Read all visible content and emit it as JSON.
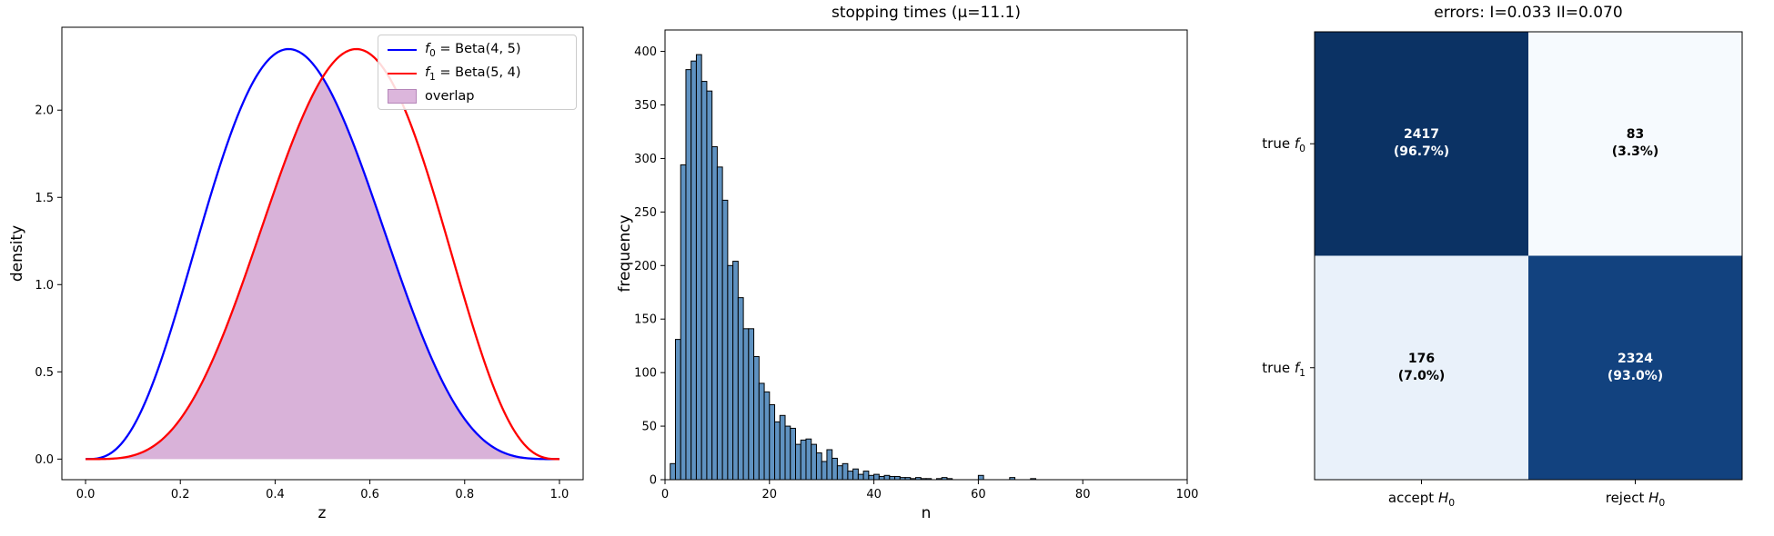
{
  "figure": {
    "background": "#ffffff"
  },
  "chart_data": [
    {
      "type": "line",
      "title": "",
      "xlabel": "z",
      "ylabel": "density",
      "xlim": [
        -0.05,
        1.05
      ],
      "ylim": [
        -0.118,
        2.475
      ],
      "xtick_labels": [
        "0.0",
        "0.2",
        "0.4",
        "0.6",
        "0.8",
        "1.0"
      ],
      "xtick_vals": [
        0,
        0.2,
        0.4,
        0.6,
        0.8,
        1.0
      ],
      "ytick_labels": [
        "0.0",
        "0.5",
        "1.0",
        "1.5",
        "2.0"
      ],
      "ytick_vals": [
        0,
        0.5,
        1.0,
        1.5,
        2.0
      ],
      "series": [
        {
          "label_it": "f",
          "label_sub": "0",
          "label_rest": " = Beta(4, 5)",
          "color": "#0000ff",
          "beta_a": 4,
          "beta_b": 5,
          "coef": 280
        },
        {
          "label_it": "f",
          "label_sub": "1",
          "label_rest": " = Beta(5, 4)",
          "color": "#ff0000",
          "beta_a": 5,
          "beta_b": 4,
          "coef": 280
        }
      ],
      "overlap": {
        "label": "overlap",
        "fill": "rgba(128,0,128,0.30)",
        "legend_fill": "#dcb6dc",
        "legend_edge": "#b586b9"
      }
    },
    {
      "type": "histogram",
      "title": "stopping times (μ=11.1)",
      "xlabel": "n",
      "ylabel": "frequency",
      "xlim": [
        0,
        100
      ],
      "ylim": [
        0,
        420
      ],
      "xtick_labels": [
        "0",
        "20",
        "40",
        "60",
        "80",
        "100"
      ],
      "xtick_vals": [
        0,
        20,
        40,
        60,
        80,
        100
      ],
      "ytick_labels": [
        "0",
        "50",
        "100",
        "150",
        "200",
        "250",
        "300",
        "350",
        "400"
      ],
      "ytick_vals": [
        0,
        50,
        100,
        150,
        200,
        250,
        300,
        350,
        400
      ],
      "bar_fill": "#5f92c1",
      "bar_edge": "#000000",
      "bin_start": 1,
      "frequencies": [
        15,
        131,
        294,
        383,
        391,
        397,
        372,
        363,
        311,
        292,
        261,
        200,
        204,
        170,
        141,
        141,
        115,
        90,
        82,
        70,
        54,
        60,
        50,
        48,
        33,
        37,
        38,
        33,
        25,
        17,
        28,
        20,
        13,
        15,
        8,
        10,
        5,
        8,
        4,
        5,
        3,
        4,
        3,
        3,
        2,
        2,
        1,
        2,
        1,
        1,
        0,
        1,
        2,
        1,
        0,
        0,
        0,
        0,
        0,
        4,
        0,
        0,
        0,
        0,
        0,
        2,
        0,
        0,
        0,
        1
      ]
    },
    {
      "type": "heatmap",
      "title": "errors: I=0.033 II=0.070",
      "row_labels": [
        {
          "pre": "true ",
          "it": "f",
          "sub": "0"
        },
        {
          "pre": "true ",
          "it": "f",
          "sub": "1"
        }
      ],
      "col_labels": [
        {
          "pre": "accept ",
          "it": "H",
          "sub": "0"
        },
        {
          "pre": "reject ",
          "it": "H",
          "sub": "0"
        }
      ],
      "values": [
        [
          2417,
          83
        ],
        [
          176,
          2324
        ]
      ],
      "cells": [
        [
          {
            "count": "2417",
            "pct": "(96.7%)",
            "bg": "#0b3264",
            "fg": "#ffffff"
          },
          {
            "count": "83",
            "pct": "(3.3%)",
            "bg": "#f6fafe",
            "fg": "#000000"
          }
        ],
        [
          {
            "count": "176",
            "pct": "(7.0%)",
            "bg": "#e9f1fa",
            "fg": "#000000"
          },
          {
            "count": "2324",
            "pct": "(93.0%)",
            "bg": "#12427f",
            "fg": "#ffffff"
          }
        ]
      ]
    }
  ]
}
